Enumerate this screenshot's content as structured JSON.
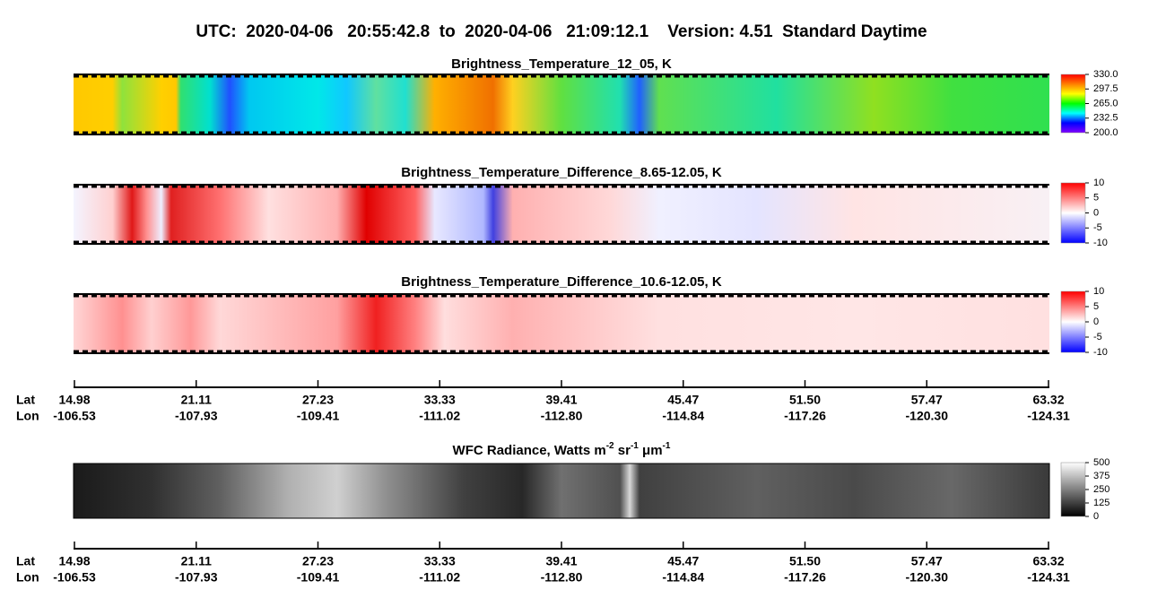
{
  "title": "UTC:  2020-04-06   20:55:42.8  to  2020-04-06   21:09:12.1    Version: 4.51  Standard Daytime",
  "chart_data": [
    {
      "type": "heatmap",
      "title": "Brightness_Temperature_12_05, K",
      "colorbar": {
        "lim": [
          200,
          330
        ],
        "ticks": [
          {
            "value": 330,
            "label": "330.0"
          },
          297.5,
          {
            "value": 265,
            "label": "265.0"
          },
          232.5,
          {
            "value": 200,
            "label": "200.0"
          }
        ],
        "colors": [
          "#8000ff",
          "#0000ff",
          "#00ffff",
          "#00ff00",
          "#ffff00",
          "#ff8000",
          "#ff0000"
        ]
      }
    },
    {
      "type": "heatmap",
      "title": "Brightness_Temperature_Difference_8.65-12.05, K",
      "colorbar": {
        "lim": [
          -10,
          10
        ],
        "ticks": [
          10,
          5,
          0,
          -5,
          -10
        ],
        "colors": [
          "#0000ff",
          "#ffffff",
          "#ff0000"
        ]
      }
    },
    {
      "type": "heatmap",
      "title": "Brightness_Temperature_Difference_10.6-12.05, K",
      "colorbar": {
        "lim": [
          -10,
          10
        ],
        "ticks": [
          10,
          5,
          0,
          -5,
          -10
        ],
        "colors": [
          "#0000ff",
          "#ffffff",
          "#ff0000"
        ]
      }
    },
    {
      "type": "heatmap",
      "title": [
        "WFC Radiance, Watts m",
        "-2",
        " sr",
        "-1",
        " μm",
        "-1"
      ],
      "colorbar": {
        "lim": [
          0,
          500
        ],
        "ticks": [
          500,
          375,
          250,
          125,
          0
        ],
        "colors": [
          "#000000",
          "#ffffff"
        ]
      }
    }
  ],
  "axes": [
    {
      "labels": [
        "Lat",
        "Lon"
      ],
      "lat": [
        14.98,
        21.11,
        27.23,
        33.33,
        39.41,
        45.47,
        {
          "value": 51.5,
          "label": "51.50"
        },
        57.47,
        63.32
      ],
      "lon": [
        -106.53,
        -107.93,
        -109.41,
        -111.02,
        {
          "value": -112.8,
          "label": "-112.80"
        },
        -114.84,
        -117.26,
        {
          "value": -120.3,
          "label": "-120.30"
        },
        -124.31
      ]
    },
    {
      "labels": [
        "Lat",
        "Lon"
      ],
      "lat": [
        14.98,
        21.11,
        27.23,
        33.33,
        39.41,
        45.47,
        {
          "value": 51.5,
          "label": "51.50"
        },
        57.47,
        63.32
      ],
      "lon": [
        -106.53,
        -107.93,
        -109.41,
        -111.02,
        {
          "value": -112.8,
          "label": "-112.80"
        },
        -114.84,
        -117.26,
        {
          "value": -120.3,
          "label": "-120.30"
        },
        -124.31
      ]
    }
  ]
}
